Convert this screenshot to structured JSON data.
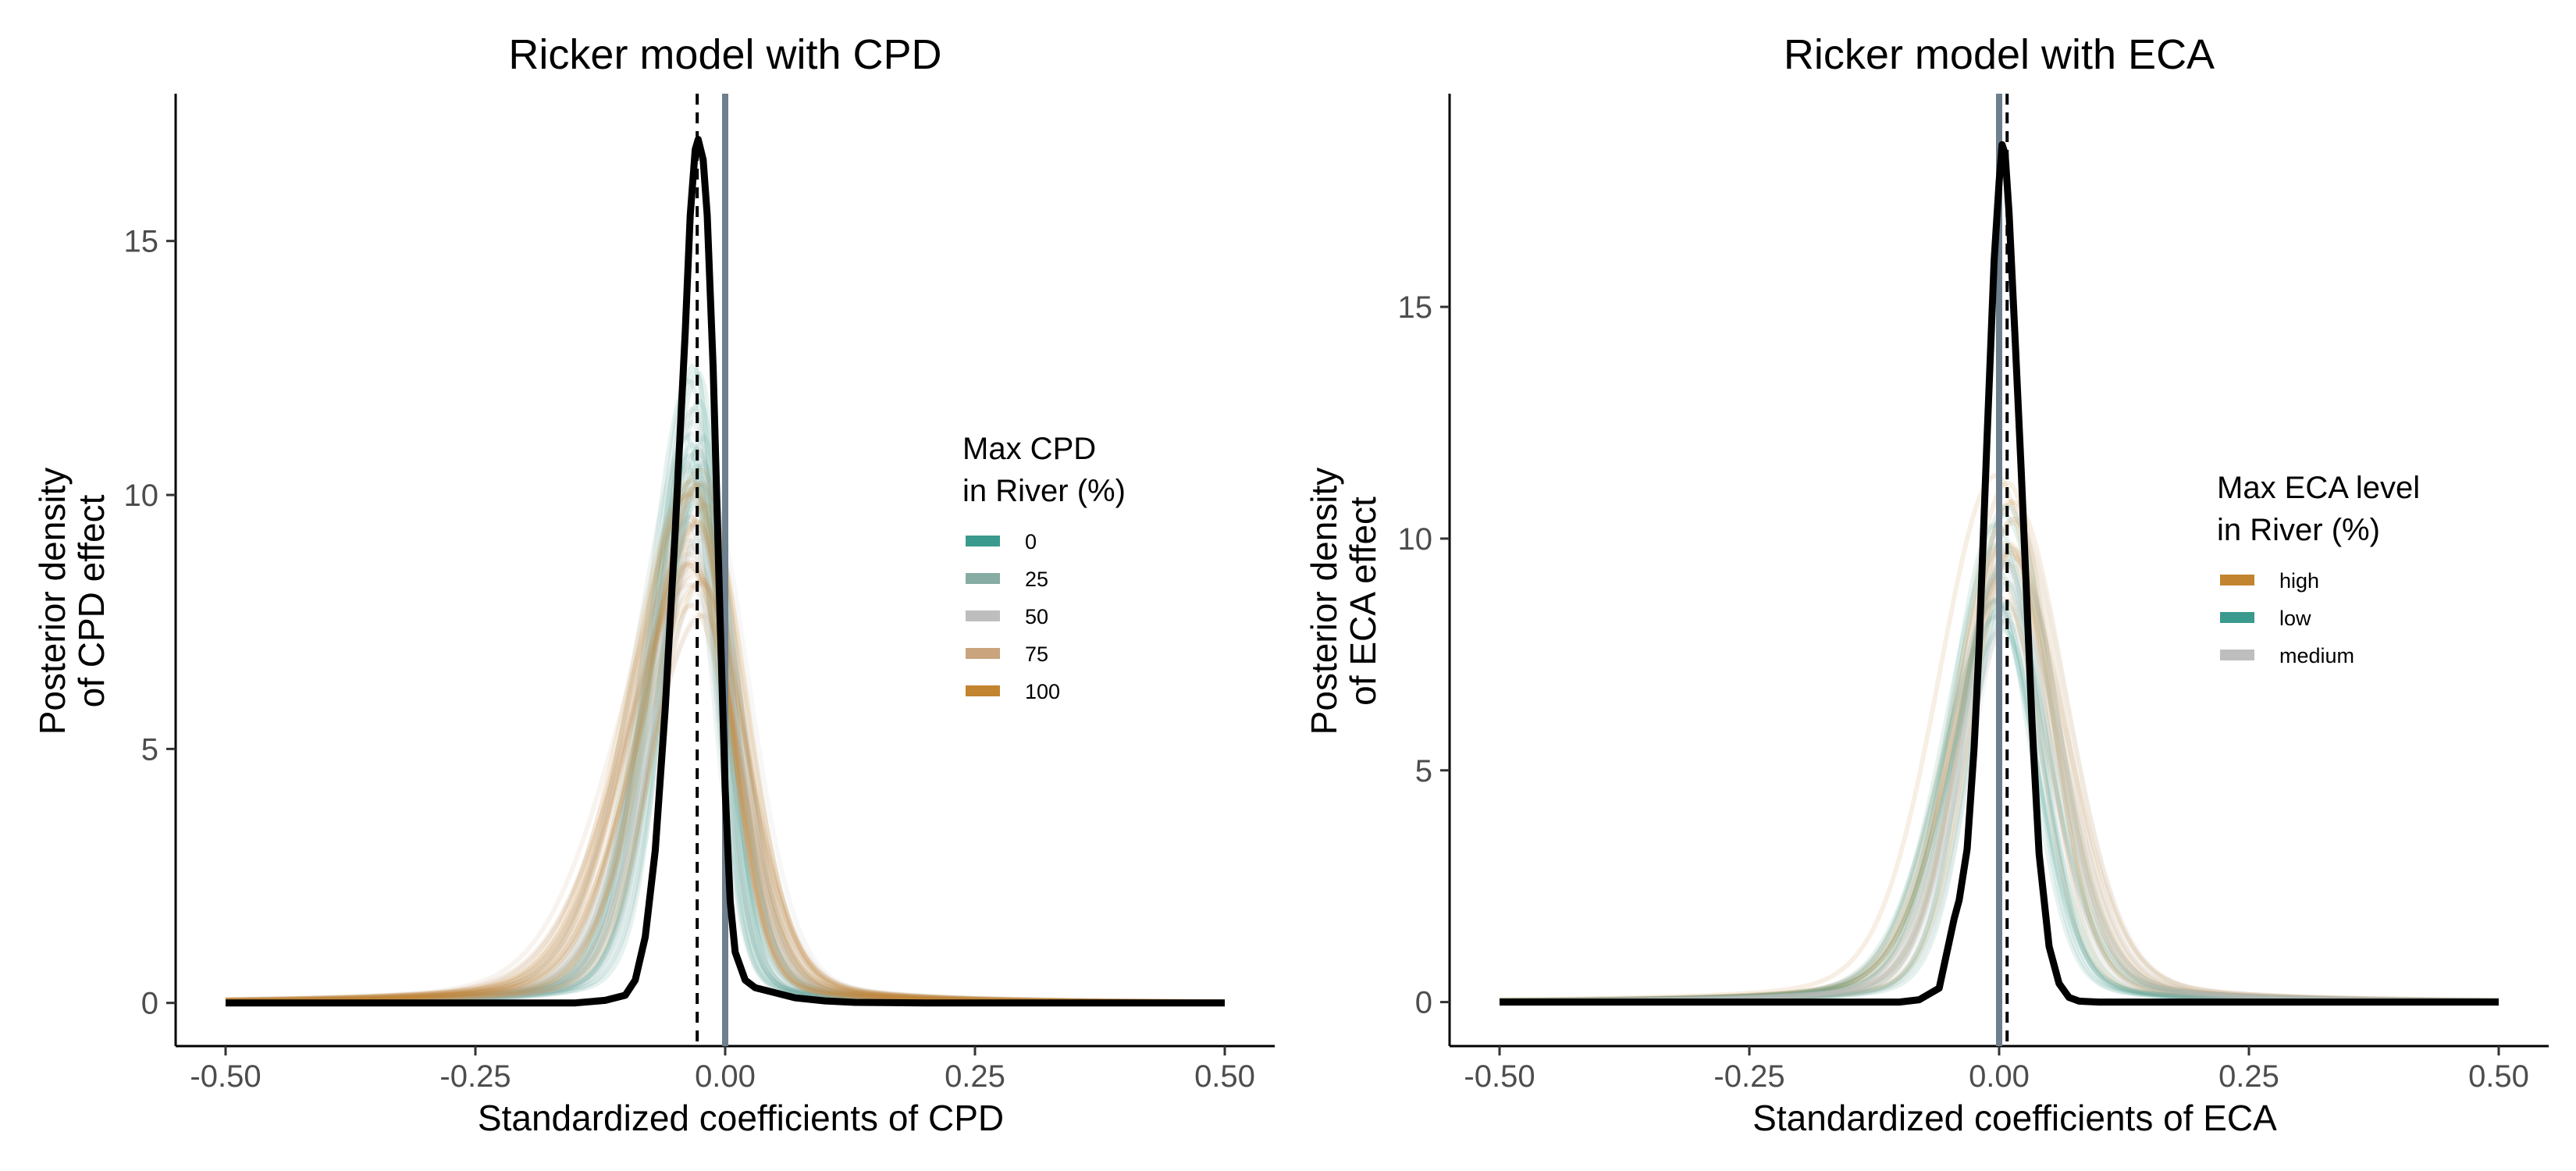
{
  "chart_data": [
    {
      "type": "line",
      "title": "Ricker model with CPD",
      "xlabel": "Standardized coefficients of CPD",
      "ylabel": [
        "Posterior density",
        "of CPD effect"
      ],
      "xlim": [
        -0.55,
        0.55
      ],
      "ylim": [
        -0.85,
        17.9
      ],
      "x_ticks": [
        -0.5,
        -0.25,
        0,
        0.25,
        0.5
      ],
      "x_tick_labels": [
        "-0.50",
        "-0.25",
        "0.00",
        "0.25",
        "0.50"
      ],
      "y_ticks": [
        0,
        5,
        10,
        15
      ],
      "y_tick_labels": [
        "0",
        "5",
        "10",
        "15"
      ],
      "ref_lines": {
        "dashed_x": -0.028,
        "solid_x": 0.0,
        "solid_color": "#6e7f8d"
      },
      "legend": {
        "title": [
          "Max CPD",
          "in River (%)"
        ],
        "position": "right",
        "items": [
          {
            "label": "0",
            "color": "#3a9a8d"
          },
          {
            "label": "25",
            "color": "#86aca3"
          },
          {
            "label": "50",
            "color": "#bebebe"
          },
          {
            "label": "75",
            "color": "#c9a47d"
          },
          {
            "label": "100",
            "color": "#c2842e"
          }
        ]
      },
      "series": [
        {
          "name": "0",
          "color": "#3a9a8d",
          "center": -0.03,
          "peak": 11.6,
          "sd_left": 0.036,
          "sd_right": 0.027
        },
        {
          "name": "25",
          "color": "#86aca3",
          "center": -0.03,
          "peak": 10.6,
          "sd_left": 0.045,
          "sd_right": 0.032
        },
        {
          "name": "50",
          "color": "#bebebe",
          "center": -0.025,
          "peak": 9.6,
          "sd_left": 0.05,
          "sd_right": 0.036
        },
        {
          "name": "75",
          "color": "#c9a47d",
          "center": -0.03,
          "peak": 9.2,
          "sd_left": 0.06,
          "sd_right": 0.04
        },
        {
          "name": "100",
          "color": "#c2842e",
          "center": -0.028,
          "peak": 9.4,
          "sd_left": 0.055,
          "sd_right": 0.038
        }
      ],
      "overall": {
        "color": "#000000",
        "points": [
          [
            -0.5,
            0
          ],
          [
            -0.2,
            0
          ],
          [
            -0.15,
            0
          ],
          [
            -0.12,
            0.05
          ],
          [
            -0.1,
            0.15
          ],
          [
            -0.09,
            0.45
          ],
          [
            -0.08,
            1.3
          ],
          [
            -0.07,
            3.0
          ],
          [
            -0.06,
            5.8
          ],
          [
            -0.05,
            9.3
          ],
          [
            -0.04,
            13.2
          ],
          [
            -0.035,
            15.5
          ],
          [
            -0.03,
            16.8
          ],
          [
            -0.027,
            17.0
          ],
          [
            -0.022,
            16.6
          ],
          [
            -0.018,
            15.5
          ],
          [
            -0.012,
            12.5
          ],
          [
            -0.005,
            7.5
          ],
          [
            0.0,
            4.2
          ],
          [
            0.005,
            2.0
          ],
          [
            0.01,
            1.0
          ],
          [
            0.02,
            0.45
          ],
          [
            0.03,
            0.3
          ],
          [
            0.05,
            0.2
          ],
          [
            0.07,
            0.1
          ],
          [
            0.1,
            0.04
          ],
          [
            0.13,
            0.01
          ],
          [
            0.2,
            0
          ],
          [
            0.5,
            0
          ]
        ]
      }
    },
    {
      "type": "line",
      "title": "Ricker model with ECA",
      "xlabel": "Standardized coefficients of ECA",
      "ylabel": [
        "Posterior density",
        "of ECA effect"
      ],
      "xlim": [
        -0.55,
        0.55
      ],
      "ylim": [
        -0.95,
        19.6
      ],
      "x_ticks": [
        -0.5,
        -0.25,
        0,
        0.25,
        0.5
      ],
      "x_tick_labels": [
        "-0.50",
        "-0.25",
        "0.00",
        "0.25",
        "0.50"
      ],
      "y_ticks": [
        0,
        5,
        10,
        15
      ],
      "y_tick_labels": [
        "0",
        "5",
        "10",
        "15"
      ],
      "ref_lines": {
        "dashed_x": 0.008,
        "solid_x": 0.0,
        "solid_color": "#6e7f8d"
      },
      "legend": {
        "title": [
          "Max ECA level",
          "in River (%)"
        ],
        "position": "right",
        "items": [
          {
            "label": "high",
            "color": "#c2842e"
          },
          {
            "label": "low",
            "color": "#3a9a8d"
          },
          {
            "label": "medium",
            "color": "#bebebe"
          }
        ]
      },
      "series": [
        {
          "name": "high",
          "color": "#c2842e",
          "center": 0.005,
          "peak": 10.2,
          "sd_left": 0.05,
          "sd_right": 0.045
        },
        {
          "name": "low",
          "color": "#3a9a8d",
          "center": 0.005,
          "peak": 9.6,
          "sd_left": 0.045,
          "sd_right": 0.042
        },
        {
          "name": "medium",
          "color": "#bebebe",
          "center": 0.006,
          "peak": 9.9,
          "sd_left": 0.048,
          "sd_right": 0.044
        }
      ],
      "overall": {
        "color": "#000000",
        "points": [
          [
            -0.5,
            0
          ],
          [
            -0.1,
            0
          ],
          [
            -0.08,
            0.05
          ],
          [
            -0.06,
            0.3
          ],
          [
            -0.05,
            1.3
          ],
          [
            -0.045,
            1.8
          ],
          [
            -0.04,
            2.2
          ],
          [
            -0.032,
            3.3
          ],
          [
            -0.025,
            5.5
          ],
          [
            -0.02,
            7.7
          ],
          [
            -0.012,
            12.2
          ],
          [
            -0.005,
            16.0
          ],
          [
            0.0,
            17.7
          ],
          [
            0.003,
            18.5
          ],
          [
            0.006,
            18.3
          ],
          [
            0.01,
            17.0
          ],
          [
            0.016,
            14.3
          ],
          [
            0.022,
            11.5
          ],
          [
            0.027,
            9.0
          ],
          [
            0.033,
            6.0
          ],
          [
            0.04,
            3.2
          ],
          [
            0.05,
            1.2
          ],
          [
            0.06,
            0.4
          ],
          [
            0.07,
            0.1
          ],
          [
            0.08,
            0.02
          ],
          [
            0.1,
            0
          ],
          [
            0.5,
            0
          ]
        ]
      }
    }
  ]
}
